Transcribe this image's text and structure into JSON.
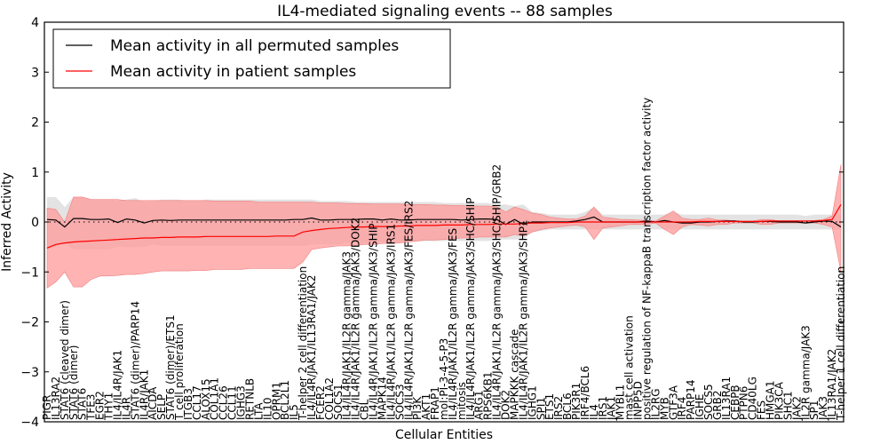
{
  "chart_data": {
    "type": "line",
    "title": "IL4-mediated signaling events -- 88 samples",
    "xlabel": "Cellular Entities",
    "ylabel": "Inferred Activity",
    "ylim": [
      -4,
      4
    ],
    "yticks": [
      -4,
      -3,
      -2,
      -1,
      0,
      1,
      2,
      3,
      4
    ],
    "reference_line": 0,
    "legend": {
      "placement": "top-left",
      "entries": [
        {
          "label": "Mean activity in all permuted samples",
          "color": "#000000"
        },
        {
          "label": "Mean activity in patient samples",
          "color": "#ff0000"
        }
      ]
    },
    "colors": {
      "permuted_line": "#000000",
      "permuted_band": "#d9d9d9",
      "patient_line": "#ff0000",
      "patient_band": "#ff9999"
    },
    "categories": [
      "PIGR",
      "IL13RA2",
      "STAT6 (cleaved dimer)",
      "STAT6 (dimer)",
      "STAT6",
      "TFE3",
      "EGR2",
      "THY1",
      "IL4/IL4R/JAK1",
      "IL4R",
      "STAT6 (dimer)/PARP14",
      "IL4R/JAK1",
      "AICDA",
      "SELP",
      "STAT6 (dimer)/ETS1",
      "T cell proliferation",
      "ITGB3",
      "CCL17",
      "ALOX15",
      "COL1A1",
      "CCL26",
      "CCL11",
      "IGHG3",
      "RETNLB",
      "LTA",
      "IL10",
      "OPRM1",
      "BCL2L1",
      "IL5",
      "T-helper 2 cell differentiation",
      "IL4/IL4R/JAK1/IL13RA1/JAK2",
      "FCER2",
      "COL1A2",
      "SOCS1",
      "IL4/IL4R/JAK1/IL2R gamma/JAK3",
      "IL4/IL4R/JAK1/IL2R gamma/JAK3/DOK2",
      "CBL",
      "IL4/IL4R/JAK1/IL2R gamma/JAK3/SHIP",
      "MAPK14",
      "IL4/IL4R/JAK1/IL2R gamma/JAK3/IRS1",
      "SOCS3",
      "IL4/IL4R/JAK1/IL2R gamma/JAK3/FES/IRS2",
      "PI3K",
      "AKT1",
      "FRAP1",
      "mol:PI-3-4-5-P3",
      "IL4/IL4R/JAK1/IL2R gamma/JAK3/FES",
      "mitosis",
      "IL4/IL4R/JAK1/IL2R gamma/JAK3/SHC/SHIP",
      "ARG1",
      "RPS6KB1",
      "IL4/IL4R/JAK1/IL2R gamma/JAK3/SHC/SHIP/GRB2",
      "DOK2",
      "MAPKKK cascade",
      "IL4/IL4R/JAK1/IL2R gamma/JAK3/SHP1",
      "IGHG1",
      "SPI1",
      "ETS1",
      "IRS2",
      "BCL6",
      "PIK3R1",
      "IRF4/BCL6",
      "IL4",
      "IRS1",
      "JAK1",
      "MYBL1",
      "mast cell activation",
      "INPP5D",
      "positive regulation of NF-kappaB transcription factor activity",
      "IL2RG",
      "MYB",
      "GTF3A",
      "IRF4",
      "PARP14",
      "IGHE",
      "SOCS5",
      "GRB2",
      "IL13RA1",
      "CEBPB",
      "PTPN6",
      "CD40LG",
      "FES",
      "HMGA1",
      "PIK3CA",
      "SHC1",
      "JAK2",
      "IL2R gamma/JAK3",
      "SP1",
      "JAK3",
      "IL13RA1/JAK2",
      "T-helper 1 cell differentiation"
    ],
    "series": [
      {
        "name": "Mean activity in all permuted samples",
        "values": [
          0.05,
          0.04,
          -0.1,
          0.07,
          0.07,
          0.05,
          0.05,
          0.06,
          -0.01,
          0.06,
          0.04,
          -0.02,
          0.03,
          0.04,
          0.03,
          0.04,
          0.04,
          0.04,
          0.04,
          0.04,
          0.04,
          0.04,
          0.04,
          0.04,
          0.04,
          0.04,
          0.04,
          0.04,
          0.05,
          0.05,
          0.08,
          0.04,
          0.04,
          0.05,
          0.05,
          0.05,
          0.06,
          0.06,
          0.04,
          0.06,
          0.04,
          0.04,
          0.05,
          0.05,
          0.05,
          0.05,
          0.05,
          0.04,
          0.05,
          0.06,
          0.06,
          0.05,
          -0.05,
          0.05,
          -0.05,
          0.0,
          0.0,
          0.0,
          0.0,
          0.0,
          0.02,
          0.05,
          0.1,
          0.0,
          0.0,
          0.0,
          0.0,
          0.0,
          0.02,
          0.0,
          0.03,
          0.0,
          -0.02,
          -0.02,
          0.0,
          0.0,
          0.01,
          0.02,
          0.02,
          0.0,
          0.0,
          0.01,
          0.01,
          0.0,
          0.0,
          0.0,
          -0.02,
          0.0,
          0.02,
          0.01,
          -0.1
        ],
        "lower": [
          -0.55,
          -0.5,
          -0.4,
          -0.55,
          -0.55,
          -0.55,
          -0.55,
          -0.55,
          -0.5,
          -0.5,
          -0.5,
          -0.5,
          -0.45,
          -0.48,
          -0.48,
          -0.48,
          -0.48,
          -0.48,
          -0.48,
          -0.48,
          -0.48,
          -0.48,
          -0.48,
          -0.48,
          -0.48,
          -0.48,
          -0.48,
          -0.48,
          -0.48,
          -0.48,
          -0.45,
          -0.45,
          -0.45,
          -0.45,
          -0.42,
          -0.42,
          -0.42,
          -0.4,
          -0.4,
          -0.4,
          -0.4,
          -0.4,
          -0.38,
          -0.38,
          -0.38,
          -0.38,
          -0.38,
          -0.38,
          -0.38,
          -0.38,
          -0.38,
          -0.35,
          -0.35,
          -0.35,
          -0.35,
          -0.2,
          -0.18,
          -0.15,
          -0.15,
          -0.15,
          -0.15,
          -0.15,
          -0.15,
          -0.15,
          -0.15,
          -0.15,
          -0.15,
          -0.15,
          -0.15,
          -0.15,
          -0.15,
          -0.15,
          -0.15,
          -0.15,
          -0.15,
          -0.15,
          -0.15,
          -0.15,
          -0.15,
          -0.15,
          -0.15,
          -0.15,
          -0.15,
          -0.15,
          -0.15,
          -0.15,
          -0.15,
          -0.15,
          -0.15,
          -0.15,
          -0.15
        ],
        "upper": [
          0.5,
          0.5,
          0.3,
          0.5,
          0.5,
          0.45,
          0.45,
          0.45,
          0.43,
          0.45,
          0.48,
          0.4,
          0.42,
          0.45,
          0.45,
          0.45,
          0.42,
          0.42,
          0.45,
          0.45,
          0.45,
          0.45,
          0.45,
          0.45,
          0.45,
          0.45,
          0.45,
          0.45,
          0.45,
          0.45,
          0.45,
          0.42,
          0.42,
          0.42,
          0.42,
          0.4,
          0.4,
          0.4,
          0.4,
          0.4,
          0.4,
          0.4,
          0.4,
          0.4,
          0.4,
          0.38,
          0.38,
          0.38,
          0.38,
          0.38,
          0.38,
          0.35,
          0.35,
          0.32,
          0.35,
          0.2,
          0.18,
          0.15,
          0.15,
          0.15,
          0.15,
          0.2,
          0.3,
          0.15,
          0.15,
          0.15,
          0.15,
          0.15,
          0.15,
          0.15,
          0.15,
          0.2,
          0.15,
          0.15,
          0.15,
          0.15,
          0.15,
          0.15,
          0.15,
          0.15,
          0.15,
          0.15,
          0.15,
          0.15,
          0.15,
          0.15,
          0.12,
          0.15,
          0.15,
          0.15,
          0.15
        ]
      },
      {
        "name": "Mean activity in patient samples",
        "values": [
          -0.52,
          -0.45,
          -0.42,
          -0.4,
          -0.39,
          -0.38,
          -0.37,
          -0.36,
          -0.35,
          -0.34,
          -0.33,
          -0.32,
          -0.32,
          -0.31,
          -0.31,
          -0.3,
          -0.3,
          -0.3,
          -0.29,
          -0.29,
          -0.29,
          -0.29,
          -0.29,
          -0.29,
          -0.29,
          -0.29,
          -0.28,
          -0.28,
          -0.28,
          -0.2,
          -0.17,
          -0.15,
          -0.13,
          -0.12,
          -0.11,
          -0.1,
          -0.1,
          -0.09,
          -0.09,
          -0.09,
          -0.08,
          -0.08,
          -0.07,
          -0.07,
          -0.07,
          -0.06,
          -0.06,
          -0.06,
          -0.05,
          -0.05,
          -0.05,
          -0.04,
          -0.04,
          -0.04,
          -0.03,
          -0.02,
          -0.02,
          -0.01,
          -0.01,
          -0.01,
          0.0,
          0.0,
          0.0,
          0.0,
          0.0,
          0.0,
          0.0,
          0.0,
          0.0,
          0.0,
          0.0,
          0.0,
          0.0,
          0.0,
          0.01,
          0.01,
          0.01,
          0.01,
          0.01,
          0.01,
          0.01,
          0.01,
          0.02,
          0.02,
          0.02,
          0.02,
          0.02,
          0.02,
          0.03,
          0.05,
          0.35
        ],
        "lower": [
          -1.32,
          -1.2,
          -1.0,
          -1.3,
          -1.3,
          -1.15,
          -1.08,
          -1.08,
          -1.07,
          -1.05,
          -1.05,
          -1.03,
          -1.0,
          -0.98,
          -0.98,
          -0.98,
          -0.98,
          -0.97,
          -0.97,
          -0.95,
          -0.95,
          -0.95,
          -0.95,
          -0.93,
          -0.93,
          -0.93,
          -0.93,
          -0.93,
          -0.93,
          -0.8,
          -0.55,
          -0.52,
          -0.5,
          -0.48,
          -0.48,
          -0.47,
          -0.45,
          -0.45,
          -0.43,
          -0.43,
          -0.42,
          -0.4,
          -0.38,
          -0.36,
          -0.36,
          -0.35,
          -0.34,
          -0.32,
          -0.32,
          -0.3,
          -0.3,
          -0.3,
          -0.3,
          -0.25,
          -0.28,
          -0.2,
          -0.15,
          -0.12,
          -0.1,
          -0.08,
          -0.06,
          -0.1,
          -0.35,
          -0.12,
          -0.1,
          -0.08,
          -0.05,
          -0.05,
          -0.05,
          -0.02,
          -0.15,
          -0.25,
          -0.1,
          -0.05,
          -0.06,
          -0.08,
          -0.05,
          -0.05,
          -0.02,
          -0.02,
          -0.02,
          -0.05,
          -0.05,
          -0.02,
          -0.02,
          -0.02,
          -0.02,
          -0.02,
          -0.05,
          -0.1,
          -1.0
        ],
        "upper": [
          0.28,
          0.25,
          0.0,
          0.5,
          0.5,
          0.45,
          0.45,
          0.45,
          0.45,
          0.43,
          0.43,
          0.43,
          0.43,
          0.43,
          0.43,
          0.43,
          0.43,
          0.43,
          0.43,
          0.42,
          0.42,
          0.42,
          0.42,
          0.42,
          0.4,
          0.4,
          0.4,
          0.4,
          0.4,
          0.4,
          0.4,
          0.38,
          0.38,
          0.38,
          0.37,
          0.37,
          0.37,
          0.36,
          0.36,
          0.36,
          0.36,
          0.35,
          0.35,
          0.35,
          0.34,
          0.34,
          0.33,
          0.33,
          0.32,
          0.32,
          0.32,
          0.3,
          0.2,
          0.3,
          0.25,
          0.18,
          0.15,
          0.1,
          0.08,
          0.06,
          0.06,
          0.12,
          0.3,
          0.1,
          0.08,
          0.05,
          0.05,
          0.04,
          0.03,
          0.02,
          0.12,
          0.22,
          0.08,
          0.05,
          0.05,
          0.08,
          0.04,
          0.04,
          0.02,
          0.02,
          0.02,
          0.05,
          0.05,
          0.02,
          0.02,
          0.02,
          0.02,
          0.03,
          0.05,
          0.12,
          1.15
        ]
      }
    ]
  }
}
